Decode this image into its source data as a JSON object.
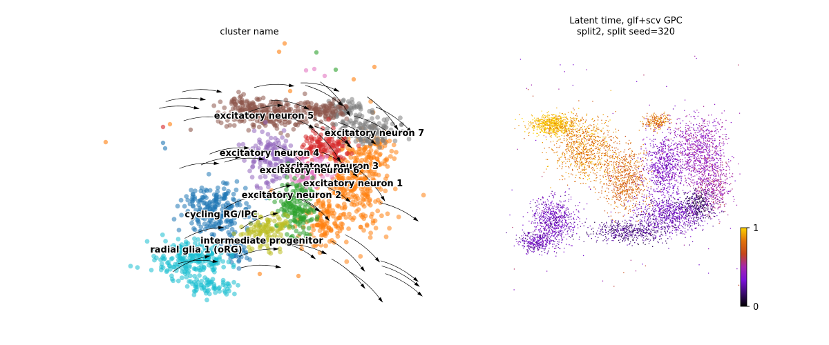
{
  "chart_data": [
    {
      "type": "scatter",
      "title": "cluster name",
      "annotations": [
        {
          "label": "excitatory neuron 5",
          "color": "#8c564b"
        },
        {
          "label": "excitatory neuron 7",
          "color": "#7f7f7f"
        },
        {
          "label": "excitatory neuron 4",
          "color": "#9467bd"
        },
        {
          "label": "excitatory neuron 3",
          "color": "#d62728"
        },
        {
          "label": "excitatory neuron 6",
          "color": "#e377c2"
        },
        {
          "label": "excitatory neuron 1",
          "color": "#ff7f0e"
        },
        {
          "label": "excitatory neuron 2",
          "color": "#2ca02c"
        },
        {
          "label": "cycling RG/IPC",
          "color": "#1f77b4"
        },
        {
          "label": "intermediate progenitor",
          "color": "#bcbd22"
        },
        {
          "label": "radial glia 1 (oRG)",
          "color": "#17becf"
        }
      ],
      "grid": false,
      "axes_visible": false,
      "streamlines": true
    },
    {
      "type": "scatter",
      "title": "Latent time, glf+scv GPC",
      "subtitle": "split2, split seed=320",
      "colorbar": {
        "min": "0",
        "max": "1",
        "colormap": [
          "#000000",
          "#3a0a6e",
          "#7a10d8",
          "#a526b0",
          "#c4461a",
          "#e1730a",
          "#fcd300"
        ]
      },
      "grid": false,
      "axes_visible": false
    }
  ]
}
